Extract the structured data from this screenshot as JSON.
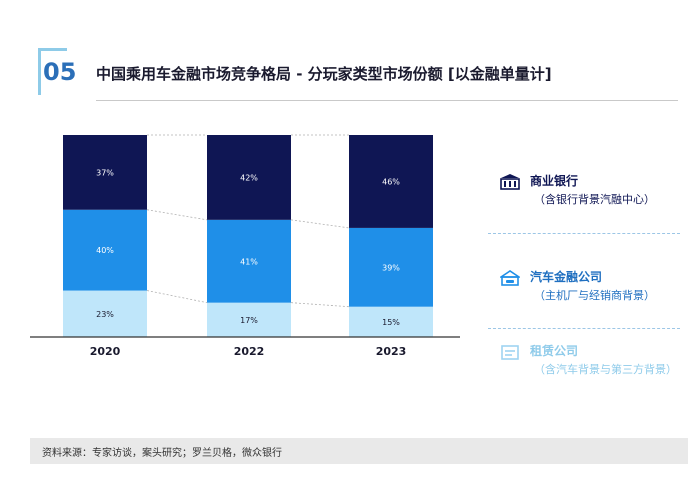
{
  "header": {
    "number": "05",
    "title": "中国乘用车金融市场竞争格局 - 分玩家类型市场份额 [以金融单量计]"
  },
  "legend": [
    {
      "name": "商业银行",
      "sub": "（含银行背景汽融中心）",
      "color": "#0f1654",
      "icon": "bank-icon"
    },
    {
      "name": "汽车金融公司",
      "sub": "（主机厂与经销商背景）",
      "color": "#1f8fe8",
      "icon": "car-finance-icon"
    },
    {
      "name": "租赁公司",
      "sub": "（含汽车背景与第三方背景）",
      "color": "#bfe6fa",
      "icon": "leasing-icon"
    }
  ],
  "chart_data": {
    "type": "bar",
    "stacked": true,
    "unit": "%",
    "categories": [
      "2020",
      "2022",
      "2023"
    ],
    "series": [
      {
        "name": "租赁公司",
        "values": [
          23,
          17,
          15
        ],
        "color": "#bfe6fa",
        "labels": [
          "23%",
          "17%",
          "15%"
        ]
      },
      {
        "name": "汽车金融公司",
        "values": [
          40,
          41,
          39
        ],
        "color": "#1f8fe8",
        "labels": [
          "40%",
          "41%",
          "39%"
        ]
      },
      {
        "name": "商业银行",
        "values": [
          37,
          42,
          46
        ],
        "color": "#0f1654",
        "labels": [
          "37%",
          "42%",
          "46%"
        ]
      }
    ],
    "ylim": [
      0,
      100
    ]
  },
  "footer": {
    "source": "资料来源：专家访谈，案头研究；罗兰贝格，微众银行"
  }
}
